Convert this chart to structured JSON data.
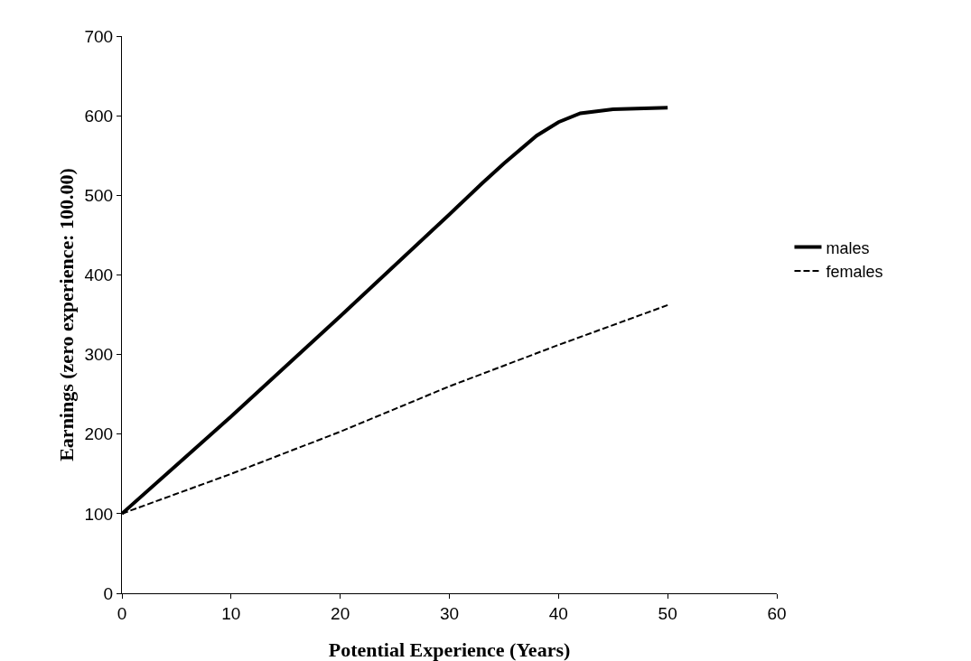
{
  "chart_data": {
    "type": "line",
    "xlabel": "Potential Experience (Years)",
    "ylabel": "Earnings (zero experience: 100.00)",
    "series": [
      {
        "name": "males",
        "color": "#000000",
        "line_style": "solid",
        "x": [
          0,
          10,
          20,
          30,
          33,
          35,
          38,
          40,
          42,
          45,
          50
        ],
        "values": [
          100,
          222,
          348,
          476,
          515,
          540,
          575,
          592,
          603,
          608,
          610
        ]
      },
      {
        "name": "females",
        "color": "#000000",
        "line_style": "dashed",
        "x": [
          0,
          10,
          20,
          30,
          40,
          50
        ],
        "values": [
          100,
          150,
          203,
          260,
          312,
          362
        ]
      }
    ],
    "xlim": [
      0,
      60
    ],
    "xticks": [
      0,
      10,
      20,
      30,
      40,
      50,
      60
    ],
    "ylim": [
      0,
      700
    ],
    "yticks": [
      0,
      100,
      200,
      300,
      400,
      500,
      600,
      700
    ],
    "grid": false,
    "legend": "right",
    "marker": "none"
  }
}
